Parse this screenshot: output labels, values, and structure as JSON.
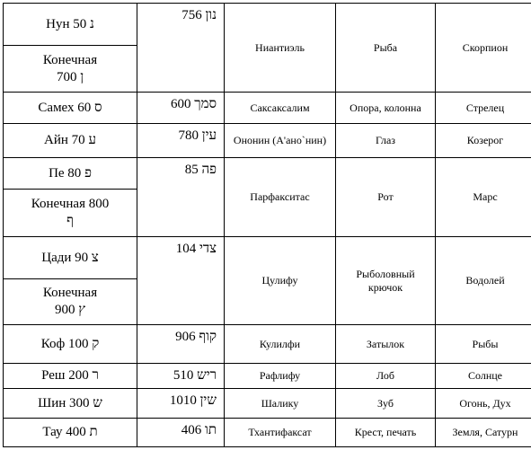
{
  "table": {
    "rows": [
      {
        "letter_lines": [
          "Нун 50 נ"
        ],
        "final_lines": [
          "Конечная",
          "700 ן"
        ],
        "value": "756 נון",
        "name": "Ниантиэль",
        "meaning": "Рыба",
        "sign": "Скорпион"
      },
      {
        "letter_lines": [
          "Самех 60 ס"
        ],
        "value": "600 סמך",
        "name": "Саксаксалим",
        "meaning": "Опора, колонна",
        "sign": "Стрелец"
      },
      {
        "letter_lines": [
          "Айн 70 ע"
        ],
        "value": "780 עין",
        "name": "Ононин (А'ано`нин)",
        "meaning": "Глаз",
        "sign": "Козерог"
      },
      {
        "letter_lines": [
          "Пе 80 פ"
        ],
        "final_lines": [
          "Конечная 800",
          "ף"
        ],
        "value": "85 פה",
        "name": "Парфакситас",
        "meaning": "Рот",
        "sign": "Марс"
      },
      {
        "letter_lines": [
          "Цади 90 צ"
        ],
        "final_lines": [
          "Конечная",
          "900 ץ"
        ],
        "value": "104 צדי",
        "name": "Цулифу",
        "meaning": "Рыболовный крючок",
        "sign": "Водолей"
      },
      {
        "letter_lines": [
          "Коф 100 ק"
        ],
        "value": "906 קוף",
        "name": "Кулилфи",
        "meaning": "Затылок",
        "sign": "Рыбы"
      },
      {
        "letter_lines": [
          "Реш 200 ר"
        ],
        "value": "510 ריש",
        "name": "Рафлифу",
        "meaning": "Лоб",
        "sign": "Солнце"
      },
      {
        "letter_lines": [
          "Шин 300 ש"
        ],
        "value": "1010 שין",
        "name": "Шалику",
        "meaning": "Зуб",
        "sign": "Огонь, Дух"
      },
      {
        "letter_lines": [
          "Тау 400 ת"
        ],
        "value": "406 תו",
        "name": "Тхантифаксат",
        "meaning": "Крест, печать",
        "sign": "Земля, Сатурн"
      }
    ]
  }
}
